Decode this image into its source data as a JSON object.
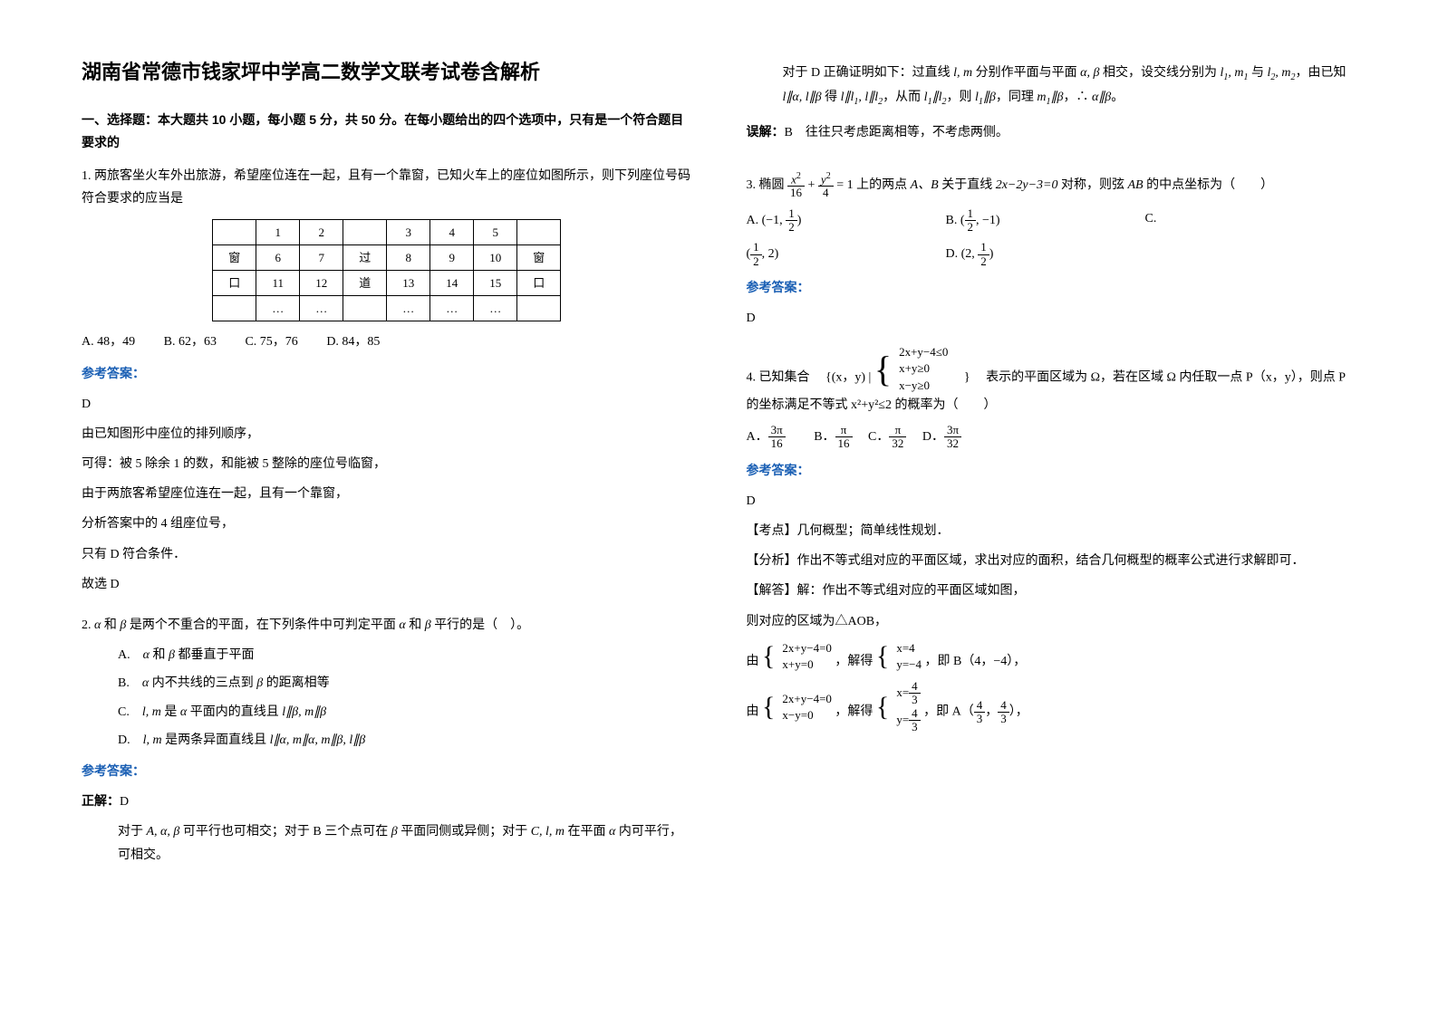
{
  "title": "湖南省常德市钱家坪中学高二数学文联考试卷含解析",
  "section1_header": "一、选择题：本大题共 10 小题，每小题 5 分，共 50 分。在每小题给出的四个选项中，只有是一个符合题目要求的",
  "q1": {
    "stem": "1. 两旅客坐火车外出旅游，希望座位连在一起，且有一个靠窗，已知火车上的座位如图所示，则下列座位号码符合要求的应当是",
    "table": {
      "rows": [
        [
          "",
          "1",
          "2",
          "",
          "3",
          "4",
          "5",
          ""
        ],
        [
          "窗",
          "6",
          "7",
          "过",
          "8",
          "9",
          "10",
          "窗"
        ],
        [
          "口",
          "11",
          "12",
          "道",
          "13",
          "14",
          "15",
          "口"
        ],
        [
          "",
          "…",
          "…",
          "",
          "…",
          "…",
          "…",
          ""
        ]
      ]
    },
    "opts": {
      "A": "A. 48，49",
      "B": "B. 62，63",
      "C": "C. 75，76",
      "D": "D. 84，85"
    },
    "answer_label": "参考答案：",
    "answer": "D",
    "explain": [
      "由已知图形中座位的排列顺序，",
      "可得：被 5 除余 1 的数，和能被 5 整除的座位号临窗，",
      "由于两旅客希望座位连在一起，且有一个靠窗，",
      "分析答案中的 4 组座位号，",
      "只有 D 符合条件．",
      "故选 D"
    ]
  },
  "q2": {
    "stem_a": "2. ",
    "stem_b": " 是两个不重合的平面，在下列条件中可判定平面 ",
    "stem_c": " 平行的是（　）。",
    "optA_a": "A.　",
    "optA_b": " 都垂直于平面",
    "optB_a": "B.　",
    "optB_b": " 内不共线的三点到 ",
    "optB_c": " 的距离相等",
    "optC_a": "C.　",
    "optC_b": " 是 ",
    "optC_c": " 平面内的直线且 ",
    "optD_a": "D.　",
    "optD_b": " 是两条异面直线且 ",
    "answer_label": "参考答案：",
    "correct_label": "正解：",
    "correct_answer": "D",
    "explain1_a": "对于 ",
    "explain1_b": " 可平行也可相交；对于 B 三个点可在 ",
    "explain1_c": " 平面同侧或异侧；对于 ",
    "explain1_d": " 在平面 ",
    "explain1_e": " 内可平行，可相交。",
    "explain2_a": "对于 D 正确证明如下：过直线 ",
    "explain2_b": " 分别作平面与平面 ",
    "explain2_c": " 相交，设交线分别为 ",
    "explain2_d": " 与 ",
    "explain2_e": "，由已知 ",
    "explain2_f": " 得 ",
    "explain2_g": "，从而 ",
    "explain2_h": "，则 ",
    "explain2_i": "，同理 ",
    "explain2_j": "，∴ ",
    "explain2_k": "。",
    "wrong_label": "误解：",
    "wrong_text": "B　往往只考虑距离相等，不考虑两侧。"
  },
  "q3": {
    "stem_a": "3. 椭圆 ",
    "stem_b": " 上的两点 ",
    "stem_c": " 关于直线 ",
    "stem_eq": "2x−2y−3=0",
    "stem_d": " 对称，则弦 ",
    "stem_e": " 的中点坐标为（　　）",
    "optA": "A.",
    "optB": "B.",
    "optC": "C.",
    "optD": "D.",
    "answer_label": "参考答案：",
    "answer": "D"
  },
  "q4": {
    "stem_a": "4. 已知集合　",
    "stem_set_pre": "{(x，y) |",
    "stem_set_post": "　}",
    "eq1": "2x+y−4≤0",
    "eq2": "x+y≥0",
    "eq3": "x−y≥0",
    "stem_b": "　表示的平面区域为 Ω，若在区域 Ω 内任取一点 P（x，y），则点 P 的坐标满足不等式 x²+y²≤2 的概率为（　　）",
    "optA": "A．",
    "optB": "B．",
    "optC": "C．",
    "optD": "D．",
    "answer_label": "参考答案：",
    "answer": "D",
    "topic": "【考点】几何概型；简单线性规划．",
    "analysis": "【分析】作出不等式组对应的平面区域，求出对应的面积，结合几何概型的概率公式进行求解即可．",
    "solve_label": "【解答】解：作出不等式组对应的平面区域如图，",
    "line1": "则对应的区域为△AOB，",
    "sys1_a": "由",
    "sys1_eq1": "2x+y−4=0",
    "sys1_eq2": "x+y=0",
    "sys1_b": "，解得",
    "sys1_eq3": "x=4",
    "sys1_eq4": "y=−4",
    "sys1_c": "，即 B（4，−4），",
    "sys2_a": "由",
    "sys2_eq1": "2x+y−4=0",
    "sys2_eq2": "x−y=0",
    "sys2_b": "，解得",
    "sys2_c": "，即 A（"
  }
}
